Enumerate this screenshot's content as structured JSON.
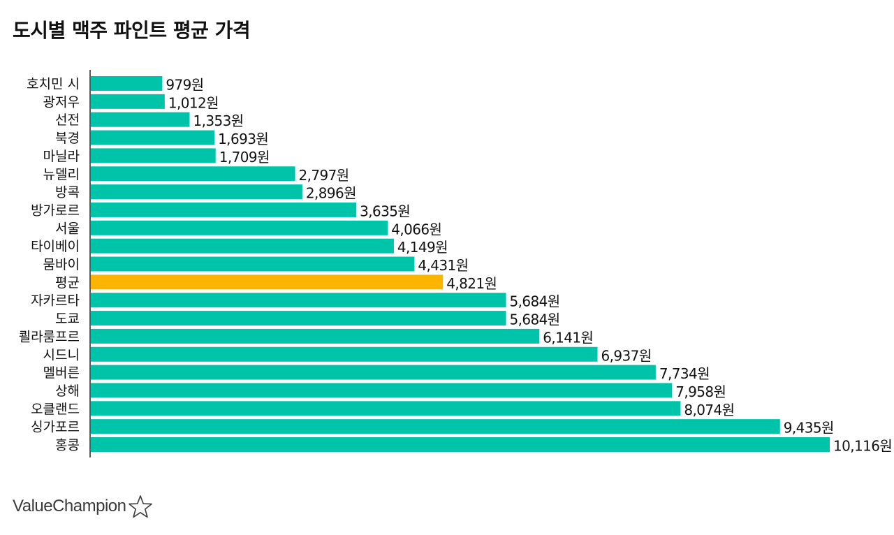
{
  "chart_data": {
    "type": "bar",
    "orientation": "horizontal",
    "title": "도시별 맥주 파인트 평균 가격",
    "categories": [
      "호치민 시",
      "광저우",
      "선전",
      "북경",
      "마닐라",
      "뉴델리",
      "방콕",
      "방가로르",
      "서울",
      "타이베이",
      "뭄바이",
      "평균",
      "자카르타",
      "도쿄",
      "쾰라룸프르",
      "시드니",
      "멜버른",
      "상해",
      "오클랜드",
      "싱가포르",
      "홍콩"
    ],
    "values": [
      979,
      1012,
      1353,
      1693,
      1709,
      2797,
      2896,
      3635,
      4066,
      4149,
      4431,
      4821,
      5684,
      5684,
      6141,
      6937,
      7734,
      7958,
      8074,
      9435,
      10116
    ],
    "value_labels": [
      "979원",
      "1,012원",
      "1,353원",
      "1,693원",
      "1,709원",
      "2,797원",
      "2,896원",
      "3,635원",
      "4,066원",
      "4,149원",
      "4,431원",
      "4,821원",
      "5,684원",
      "5,684원",
      "6,141원",
      "6,937원",
      "7,734원",
      "7,958원",
      "8,074원",
      "9,435원",
      "10,116원"
    ],
    "highlight_category": "평균",
    "colors": {
      "bar": "#00c4aa",
      "highlight": "#fbb400",
      "axis": "#222222"
    },
    "xlim": [
      0,
      10116
    ],
    "xlabel": "",
    "ylabel": "",
    "grid": false
  },
  "brand": {
    "name": "ValueChampion",
    "icon": "star-outline-icon"
  }
}
